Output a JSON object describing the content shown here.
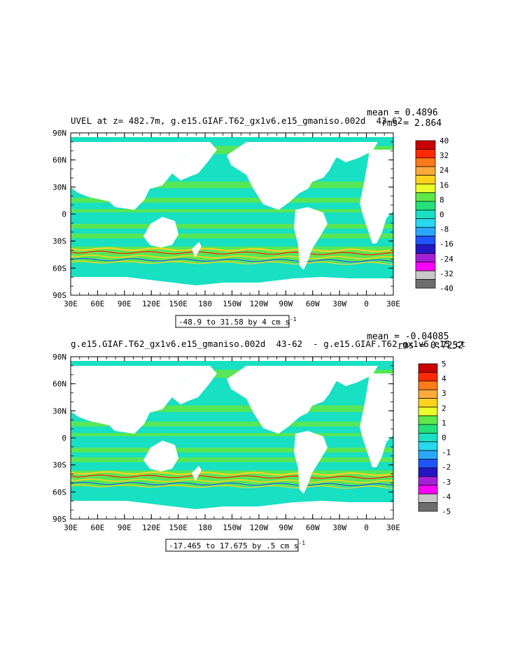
{
  "panels": [
    {
      "title": "UVEL at z= 482.7m, g.e15.GIAF.T62_gx1v6.e15_gmaniso.002d  43-62 ",
      "mean_text": "mean = 0.4896",
      "rms_text": "rms = 2.864",
      "range_text": "-48.9 to 31.58 by 4 cm s",
      "range_sup": "-1",
      "lat_labels": [
        "90N",
        "60N",
        "30N",
        "0",
        "30S",
        "60S",
        "90S"
      ],
      "lon_labels": [
        "30E",
        "60E",
        "90E",
        "120E",
        "150E",
        "180",
        "150W",
        "120W",
        "90W",
        "60W",
        "30W",
        "0",
        "30E"
      ],
      "colorbar_labels": [
        "40",
        "32",
        "24",
        "16",
        "8",
        "0",
        "-8",
        "-16",
        "-24",
        "-32",
        "-40"
      ],
      "colorbar_colors": [
        "#c80000",
        "#ff2a00",
        "#ff7a18",
        "#ffa93a",
        "#ffd21e",
        "#eaff2a",
        "#5ee84a",
        "#23e07a",
        "#17e0c3",
        "#27d8f0",
        "#2aa8ff",
        "#1f55ff",
        "#2416c4",
        "#a420d6",
        "#ff00ff",
        "#c8c8c8",
        "#6e6e6e"
      ]
    },
    {
      "title": "g.e15.GIAF.T62_gx1v6.e15_gmaniso.002d  43-62  - g.e15.GIAF.T62_gx1v6.e15_ct",
      "mean_text": "mean = -0.04085",
      "rms_text": "rms = 0.7252",
      "range_text": "-17.465 to 17.675 by .5 cm s",
      "range_sup": "-1",
      "lat_labels": [
        "90N",
        "60N",
        "30N",
        "0",
        "30S",
        "60S",
        "90S"
      ],
      "lon_labels": [
        "30E",
        "60E",
        "90E",
        "120E",
        "150E",
        "180",
        "150W",
        "120W",
        "90W",
        "60W",
        "30W",
        "0",
        "30E"
      ],
      "colorbar_labels": [
        "5",
        "4",
        "3",
        "2",
        "1",
        "0",
        "-1",
        "-2",
        "-3",
        "-4",
        "-5"
      ],
      "colorbar_colors": [
        "#c80000",
        "#ff2a00",
        "#ff7a18",
        "#ffa93a",
        "#ffd21e",
        "#eaff2a",
        "#5ee84a",
        "#23e07a",
        "#17e0c3",
        "#27d8f0",
        "#2aa8ff",
        "#1f55ff",
        "#2416c4",
        "#a420d6",
        "#ff00ff",
        "#c8c8c8",
        "#6e6e6e"
      ]
    }
  ],
  "colors": {
    "ocean_base": "#17e0c3",
    "zonal_band": "#5ee84a",
    "jet_yellow": "#ffd21e",
    "jet_red": "#ff2a00",
    "jet_blue": "#1f55ff",
    "land": "#ffffff"
  }
}
